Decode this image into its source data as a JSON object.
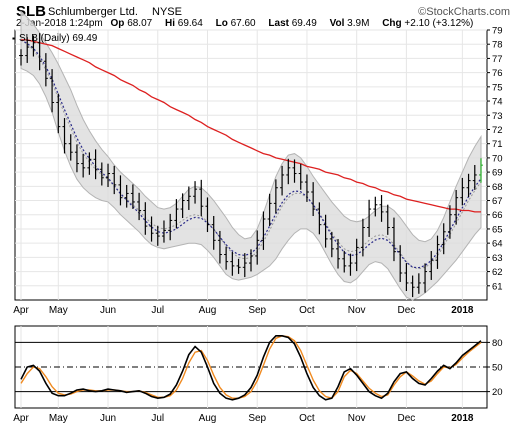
{
  "header": {
    "ticker": "SLB",
    "company": "Schlumberger Ltd.",
    "exchange": "NYSE",
    "brand": "©StockCharts.com",
    "date": "2-Jan-2018 1:24pm",
    "open_label": "Op",
    "open": "68.07",
    "high_label": "Hi",
    "high": "69.64",
    "low_label": "Lo",
    "low": "67.60",
    "last_label": "Last",
    "last": "69.49",
    "vol_label": "Vol",
    "vol": "3.9M",
    "chg_label": "Chg",
    "chg": "+2.10 (+3.12%)"
  },
  "chart_data": [
    {
      "type": "ohlc",
      "legend": "SLB (Daily) 69.49",
      "ylim": [
        60,
        79
      ],
      "y_ticks": [
        61,
        62,
        63,
        64,
        65,
        66,
        67,
        68,
        69,
        70,
        71,
        72,
        73,
        74,
        75,
        76,
        77,
        78,
        79
      ],
      "x_ticks": [
        "Apr",
        "May",
        "Jun",
        "Jul",
        "Aug",
        "Sep",
        "Oct",
        "Nov",
        "Dec",
        "2018"
      ],
      "closes": [
        77.2,
        77.8,
        78.1,
        76.8,
        75.6,
        73.9,
        72.2,
        71.0,
        70.4,
        69.6,
        69.3,
        69.9,
        69.2,
        68.6,
        68.9,
        68.1,
        67.2,
        67.5,
        66.9,
        66.3,
        65.2,
        64.7,
        64.5,
        64.9,
        65.6,
        66.4,
        67.0,
        67.3,
        67.8,
        66.6,
        65.3,
        64.2,
        63.2,
        62.7,
        62.4,
        62.3,
        62.6,
        63.1,
        64.2,
        65.7,
        66.8,
        67.9,
        68.8,
        69.3,
        68.9,
        68.3,
        67.6,
        66.4,
        65.3,
        64.3,
        63.6,
        62.9,
        62.4,
        62.6,
        63.7,
        65.1,
        66.4,
        66.7,
        66.2,
        65.1,
        63.4,
        61.9,
        61.2,
        60.9,
        61.2,
        62.0,
        62.8,
        63.9,
        64.8,
        66.0,
        67.2,
        67.9,
        68.4,
        68.8,
        69.49
      ],
      "ma_short": [
        78.3,
        78.0,
        77.6,
        77.0,
        76.2,
        75.3,
        74.2,
        73.1,
        72.1,
        71.1,
        70.3,
        69.7,
        69.2,
        68.8,
        68.5,
        68.0,
        67.5,
        67.1,
        66.7,
        66.3,
        65.8,
        65.4,
        65.1,
        65.0,
        65.1,
        65.3,
        65.6,
        65.9,
        66.0,
        65.9,
        65.5,
        65.0,
        64.4,
        63.8,
        63.3,
        63.0,
        62.9,
        63.0,
        63.4,
        64.1,
        64.9,
        65.8,
        66.6,
        67.2,
        67.5,
        67.5,
        67.2,
        66.7,
        66.1,
        65.4,
        64.7,
        64.1,
        63.6,
        63.4,
        63.5,
        63.8,
        64.2,
        64.5,
        64.6,
        64.4,
        63.9,
        63.3,
        62.7,
        62.3,
        62.2,
        62.3,
        62.6,
        63.1,
        63.8,
        64.6,
        65.4,
        66.2,
        67.0,
        67.7,
        68.3
      ],
      "ma_long": [
        78.3,
        78.3,
        78.2,
        78.1,
        78.0,
        77.9,
        77.7,
        77.5,
        77.3,
        77.1,
        76.9,
        76.7,
        76.4,
        76.2,
        76.0,
        75.8,
        75.5,
        75.3,
        75.1,
        74.8,
        74.6,
        74.3,
        74.1,
        73.9,
        73.6,
        73.4,
        73.2,
        73.0,
        72.7,
        72.5,
        72.2,
        72.0,
        71.8,
        71.6,
        71.3,
        71.1,
        70.9,
        70.7,
        70.5,
        70.3,
        70.2,
        70.0,
        69.9,
        69.8,
        69.7,
        69.6,
        69.4,
        69.3,
        69.2,
        69.0,
        68.9,
        68.8,
        68.6,
        68.5,
        68.3,
        68.2,
        68.0,
        67.9,
        67.7,
        67.6,
        67.4,
        67.3,
        67.1,
        67.0,
        66.9,
        66.8,
        66.7,
        66.6,
        66.5,
        66.4,
        66.4,
        66.3,
        66.3,
        66.2,
        66.2
      ],
      "band_width": [
        2.0,
        1.9,
        1.8,
        1.8,
        1.9,
        2.1,
        2.4,
        2.6,
        2.7,
        2.6,
        2.4,
        2.2,
        2.0,
        1.8,
        1.6,
        1.5,
        1.5,
        1.5,
        1.5,
        1.5,
        1.5,
        1.5,
        1.4,
        1.4,
        1.4,
        1.5,
        1.7,
        1.9,
        2.0,
        2.0,
        2.0,
        2.0,
        2.0,
        2.0,
        1.8,
        1.6,
        1.4,
        1.4,
        1.6,
        2.0,
        2.5,
        2.9,
        3.0,
        3.0,
        2.8,
        2.5,
        2.2,
        2.0,
        2.0,
        2.1,
        2.2,
        2.3,
        2.3,
        2.2,
        2.0,
        1.8,
        1.7,
        1.8,
        2.0,
        2.2,
        2.4,
        2.5,
        2.5,
        2.3,
        2.0,
        1.8,
        1.7,
        1.8,
        2.0,
        2.3,
        2.6,
        2.8,
        3.0,
        3.1,
        3.2
      ],
      "colors": {
        "price_bar": "#000000",
        "ma_long": "#dd2020",
        "ma_short": "#2a2a88",
        "band_fill": "#dcdcdc",
        "band_edge": "#b4b4b4",
        "last_marker": "#22aa22"
      }
    },
    {
      "type": "oscillator",
      "ylim": [
        0,
        100
      ],
      "y_ticks": [
        20,
        50,
        80
      ],
      "x_ticks": [
        "Apr",
        "May",
        "Jun",
        "Jul",
        "Aug",
        "Sep",
        "Oct",
        "Nov",
        "Dec",
        "2018"
      ],
      "fast": [
        35,
        50,
        52,
        45,
        30,
        18,
        15,
        15,
        18,
        22,
        23,
        21,
        20,
        21,
        23,
        22,
        21,
        19,
        20,
        21,
        18,
        14,
        12,
        13,
        17,
        28,
        45,
        65,
        75,
        68,
        50,
        30,
        18,
        12,
        10,
        12,
        16,
        25,
        40,
        62,
        80,
        88,
        88,
        86,
        78,
        62,
        42,
        25,
        15,
        10,
        12,
        26,
        44,
        48,
        40,
        30,
        20,
        15,
        12,
        18,
        32,
        42,
        44,
        36,
        30,
        28,
        36,
        45,
        52,
        48,
        55,
        64,
        70,
        76,
        82
      ],
      "signal": [
        30,
        42,
        50,
        48,
        38,
        26,
        18,
        16,
        17,
        20,
        22,
        22,
        21,
        21,
        22,
        22,
        21,
        20,
        20,
        21,
        19,
        16,
        13,
        13,
        15,
        22,
        36,
        55,
        68,
        70,
        58,
        40,
        25,
        16,
        12,
        12,
        14,
        20,
        33,
        52,
        72,
        85,
        88,
        87,
        82,
        70,
        52,
        34,
        21,
        14,
        12,
        20,
        38,
        46,
        42,
        33,
        24,
        18,
        14,
        16,
        28,
        38,
        44,
        39,
        33,
        29,
        33,
        42,
        50,
        49,
        53,
        61,
        68,
        74,
        80
      ],
      "colors": {
        "fast": "#000000",
        "signal": "#f08a20"
      }
    }
  ]
}
